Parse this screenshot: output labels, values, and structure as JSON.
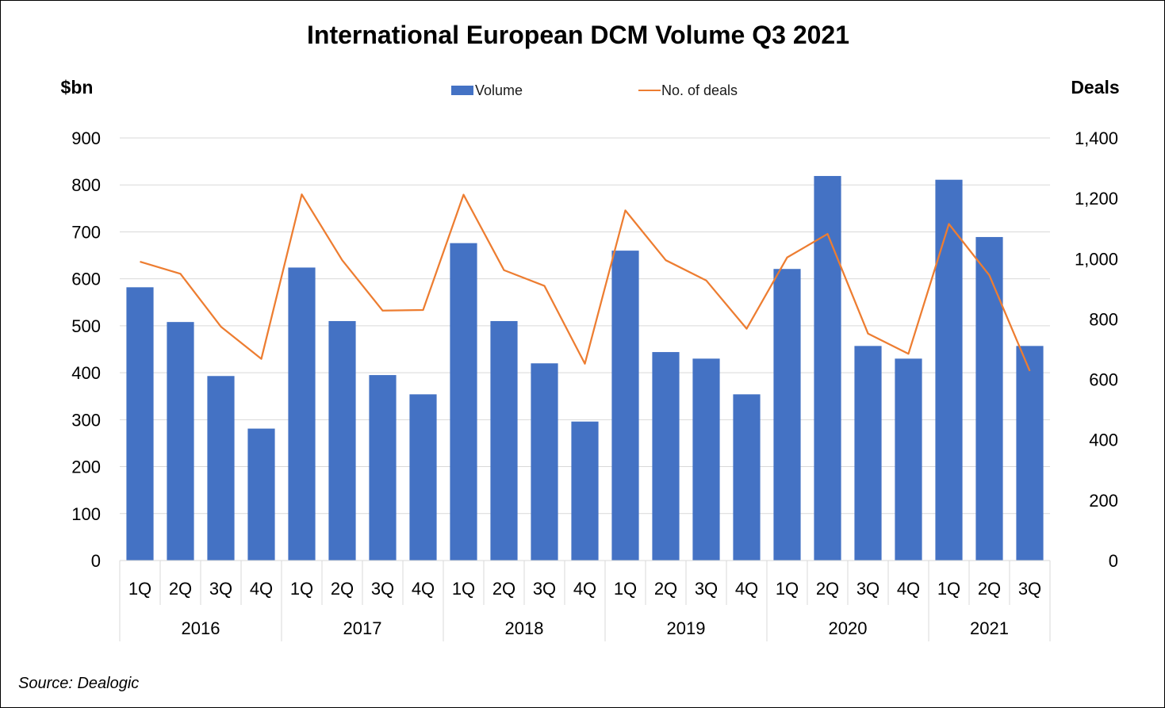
{
  "chart_data": {
    "type": "bar",
    "title": "International European DCM Volume Q3 2021",
    "ylabel_left": "$bn",
    "ylabel_right": "Deals",
    "source": "Source: Dealogic",
    "quarters": [
      "1Q",
      "2Q",
      "3Q",
      "4Q",
      "1Q",
      "2Q",
      "3Q",
      "4Q",
      "1Q",
      "2Q",
      "3Q",
      "4Q",
      "1Q",
      "2Q",
      "3Q",
      "4Q",
      "1Q",
      "2Q",
      "3Q",
      "4Q",
      "1Q",
      "2Q",
      "3Q"
    ],
    "years": [
      {
        "label": "2016",
        "count": 4
      },
      {
        "label": "2017",
        "count": 4
      },
      {
        "label": "2018",
        "count": 4
      },
      {
        "label": "2019",
        "count": 4
      },
      {
        "label": "2020",
        "count": 4
      },
      {
        "label": "2021",
        "count": 3
      }
    ],
    "series": [
      {
        "name": "Volume",
        "type": "bar",
        "axis": "left",
        "color": "#4472C4",
        "values": [
          582,
          508,
          393,
          281,
          624,
          510,
          395,
          354,
          676,
          510,
          420,
          296,
          660,
          444,
          430,
          354,
          621,
          819,
          457,
          430,
          811,
          689,
          457
        ]
      },
      {
        "name": "No. of deals",
        "type": "line",
        "axis": "right",
        "color": "#ED7D31",
        "values": [
          990,
          950,
          775,
          668,
          1213,
          995,
          828,
          830,
          1212,
          962,
          910,
          652,
          1160,
          995,
          928,
          768,
          1004,
          1082,
          752,
          685,
          1115,
          945,
          628
        ]
      }
    ],
    "ylim_left": [
      0,
      900
    ],
    "yticks_left": [
      0,
      100,
      200,
      300,
      400,
      500,
      600,
      700,
      800,
      900
    ],
    "ytick_labels_left": [
      "0",
      "100",
      "200",
      "300",
      "400",
      "500",
      "600",
      "700",
      "800",
      "900"
    ],
    "ylim_right": [
      0,
      1400
    ],
    "yticks_right": [
      0,
      200,
      400,
      600,
      800,
      1000,
      1200,
      1400
    ],
    "ytick_labels_right": [
      "0",
      "200",
      "400",
      "600",
      "800",
      "1,000",
      "1,200",
      "1,400"
    ],
    "grid": true,
    "legend_position": "top-center"
  }
}
